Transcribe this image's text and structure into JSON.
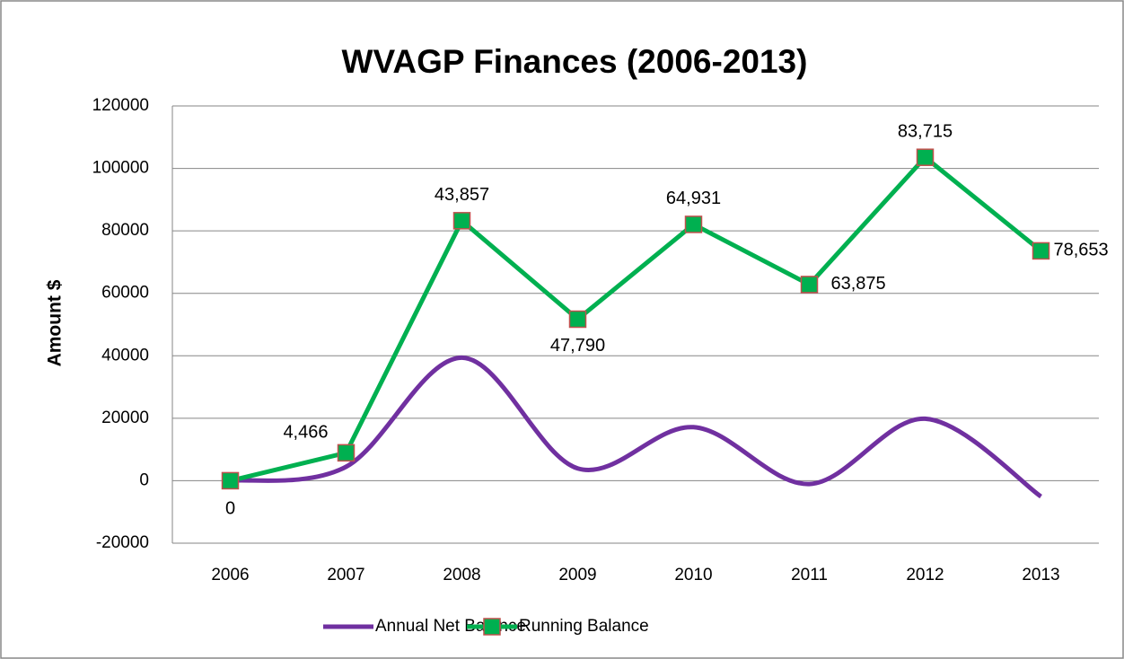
{
  "chart_data": {
    "type": "line",
    "stacked": true,
    "title": "WVAGP Finances (2006-2013)",
    "y_label": "Amount $",
    "categories": [
      "2006",
      "2007",
      "2008",
      "2009",
      "2010",
      "2011",
      "2012",
      "2013"
    ],
    "series": [
      {
        "name": "Annual Net Balance",
        "color": "#7030a0",
        "smooth": true,
        "values": [
          0,
          4466,
          39391,
          3933,
          17141,
          -1056,
          19840,
          -5062
        ]
      },
      {
        "name": "Running Balance",
        "color": "#00b050",
        "marker": "square",
        "marker_edge": "#c0504d",
        "values": [
          0,
          4466,
          43857,
          47790,
          64931,
          63875,
          83715,
          78653
        ],
        "value_labels": [
          "0",
          "4,466",
          "43,857",
          "47,790",
          "64,931",
          "63,875",
          "83,715",
          "78,653"
        ]
      }
    ],
    "ylim": [
      -20000,
      120000
    ],
    "yticks": [
      -20000,
      0,
      20000,
      40000,
      60000,
      80000,
      100000,
      120000
    ],
    "grid": true,
    "legend": "bottom"
  }
}
